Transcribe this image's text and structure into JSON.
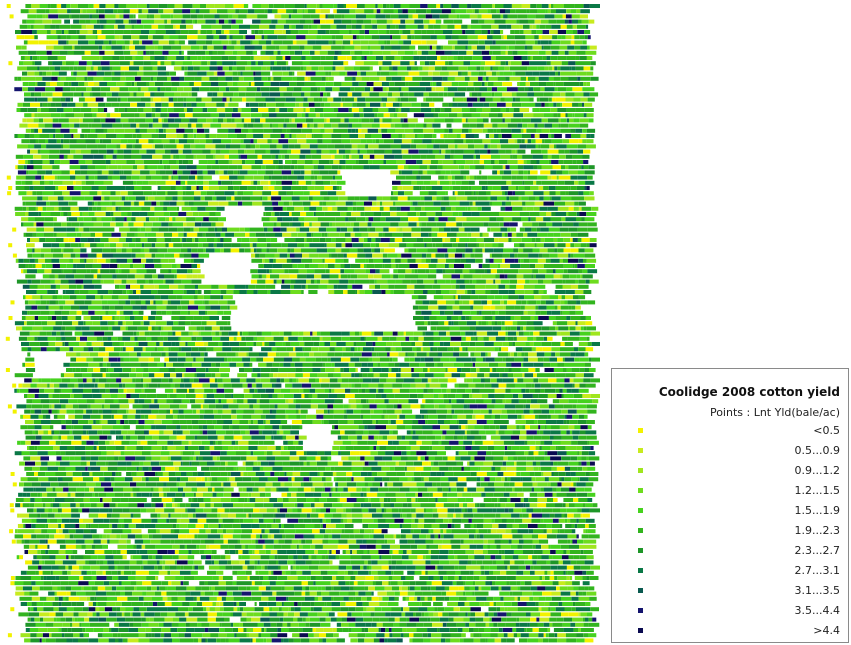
{
  "legend": {
    "title": "Coolidge 2008 cotton yield",
    "subtitle": "Points : Lnt Yld(bale/ac)",
    "classes": [
      {
        "label": "<0.5",
        "color": "#f2f200"
      },
      {
        "label": "0.5...0.9",
        "color": "#c8eb1e"
      },
      {
        "label": "0.9...1.2",
        "color": "#a0e61e"
      },
      {
        "label": "1.2...1.5",
        "color": "#6edc1e"
      },
      {
        "label": "1.5...1.9",
        "color": "#46d21e"
      },
      {
        "label": "1.9...2.3",
        "color": "#32b41e"
      },
      {
        "label": "2.3...2.7",
        "color": "#1e9628"
      },
      {
        "label": "2.7...3.1",
        "color": "#0a7846"
      },
      {
        "label": "3.1...3.5",
        "color": "#0a5a50"
      },
      {
        "label": "3.5...4.4",
        "color": "#14146e"
      },
      {
        "label": ">4.4",
        "color": "#0a0a50"
      }
    ]
  }
}
